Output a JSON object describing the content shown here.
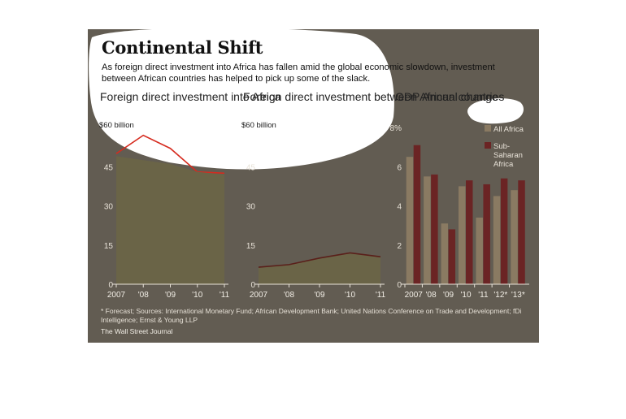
{
  "header": {
    "title": "Continental Shift",
    "subtitle": "As foreign direct investment into Africa has fallen amid the global economic slowdown, investment between African countries has helped to pick up some of the slack."
  },
  "footnote": "* Forecast; Sources: International Monetary Fund; African Development Bank; United Nations Conference on Trade and Development; fDi Intelligence; Ernst & Young LLP",
  "credit": "The Wall Street Journal",
  "colors": {
    "panel": "#625c52",
    "area_fill": "#6a6447",
    "line_red": "#d62b1f",
    "line_dark": "#5a1f1a",
    "bar_all_africa": "#8a7a62",
    "bar_sub_saharan": "#6b2424",
    "highlight": "#ffffff"
  },
  "chart_data": [
    {
      "type": "area",
      "title": "Foreign direct investment into Africa",
      "x": [
        "2007",
        "'08",
        "'09",
        "'10",
        "'11"
      ],
      "series": [
        {
          "values": [
            50,
            57,
            52,
            43,
            42.5
          ],
          "style": "line"
        },
        {
          "values": [
            49,
            47.5,
            46,
            43,
            42
          ],
          "style": "area"
        }
      ],
      "ylim": [
        0,
        60
      ],
      "yticks": [
        "0",
        "15",
        "30",
        "45",
        "$60 billion"
      ],
      "grid": false
    },
    {
      "type": "area",
      "title": "Foreign direct investment between African countries",
      "x": [
        "2007",
        "'08",
        "'09",
        "'10",
        "'11"
      ],
      "series": [
        {
          "values": [
            6.5,
            7.5,
            10,
            12,
            10.5
          ]
        }
      ],
      "ylim": [
        0,
        60
      ],
      "yticks": [
        "0",
        "15",
        "30",
        "45",
        "$60 billion"
      ],
      "grid": false
    },
    {
      "type": "bar",
      "title": "GDP Annual change",
      "categories": [
        "2007",
        "'08",
        "'09",
        "'10",
        "'11",
        "'12*",
        "'13*"
      ],
      "series": [
        {
          "name": "All Africa",
          "values": [
            6.5,
            5.5,
            3.1,
            5.0,
            3.4,
            4.5,
            4.8
          ]
        },
        {
          "name": "Sub-Saharan Africa",
          "values": [
            7.1,
            5.6,
            2.8,
            5.3,
            5.1,
            5.4,
            5.3
          ]
        }
      ],
      "ylim": [
        0,
        8
      ],
      "yticks": [
        "0",
        "2",
        "4",
        "6",
        "8%"
      ],
      "legend": "top-right",
      "grid": false
    }
  ]
}
